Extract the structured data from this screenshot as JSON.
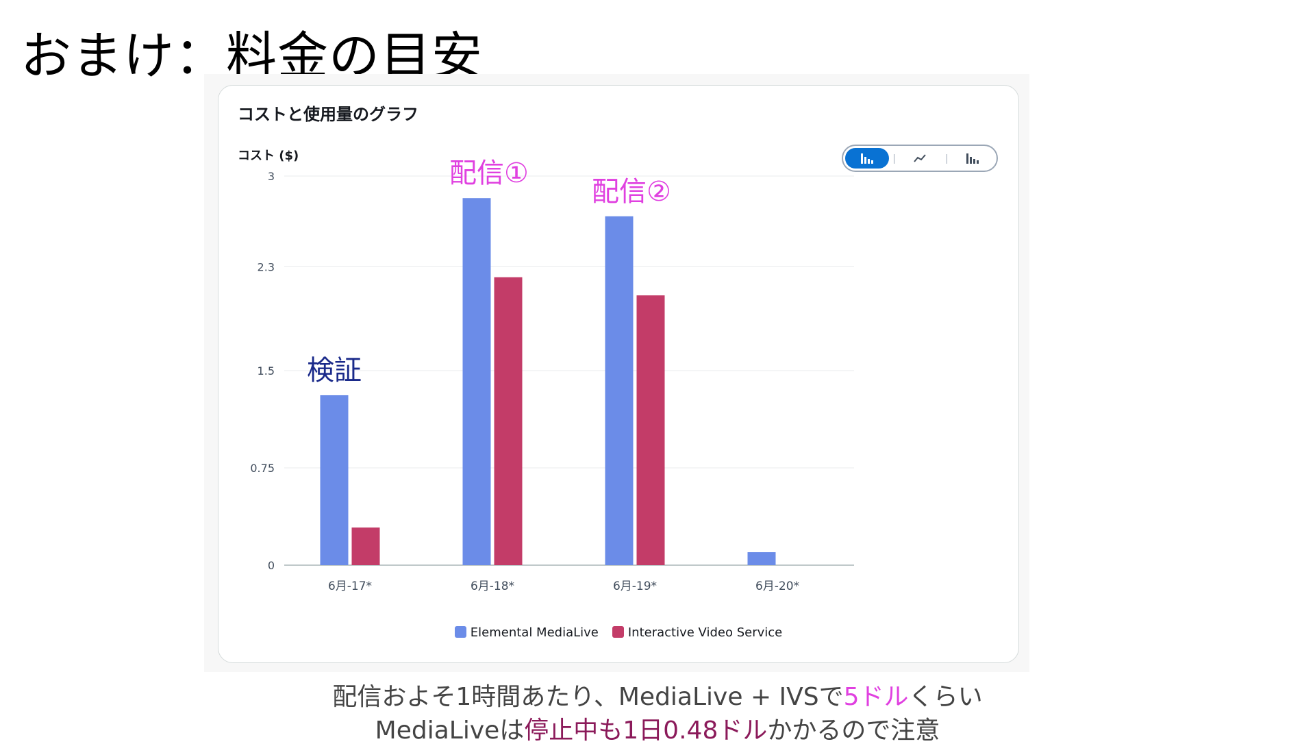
{
  "slide": {
    "title": "おまけ：料金の目安"
  },
  "panel": {
    "title": "コストと使用量のグラフ",
    "y_axis_label": "コスト ($)"
  },
  "view_toggle": {
    "options": [
      "bar-chart-icon",
      "line-chart-icon",
      "stacked-bar-chart-icon"
    ],
    "selected": "bar-chart-icon"
  },
  "annotations": [
    {
      "text": "配信①",
      "category": "6月-18*",
      "color": "#e040e0"
    },
    {
      "text": "配信②",
      "category": "6月-19*",
      "color": "#e040e0"
    },
    {
      "text": "検証",
      "category": "6月-17*",
      "color": "#1a2a8a"
    }
  ],
  "chart_data": {
    "type": "bar",
    "categories": [
      "6月-17*",
      "6月-18*",
      "6月-19*",
      "6月-20*"
    ],
    "series": [
      {
        "name": "Elemental MediaLive",
        "color": "#6b8ce8",
        "values": [
          1.31,
          2.83,
          2.69,
          0.1
        ]
      },
      {
        "name": "Interactive Video Service",
        "color": "#c33c68",
        "values": [
          0.29,
          2.22,
          2.08,
          0
        ]
      }
    ],
    "yticks": [
      "0",
      "0.75",
      "1.5",
      "2.3",
      "3"
    ],
    "ylim": [
      0,
      3
    ],
    "ylabel": "コスト ($)",
    "grid": true,
    "legend": "bottom"
  },
  "footer": {
    "line1": {
      "pre": "配信およそ1時間あたり、MediaLive + IVSで",
      "hl": "5ドル",
      "post": "くらい"
    },
    "line2": {
      "pre": "MediaLiveは",
      "hl": "停止中も1日0.48ドル",
      "post": "かかるので注意"
    }
  }
}
